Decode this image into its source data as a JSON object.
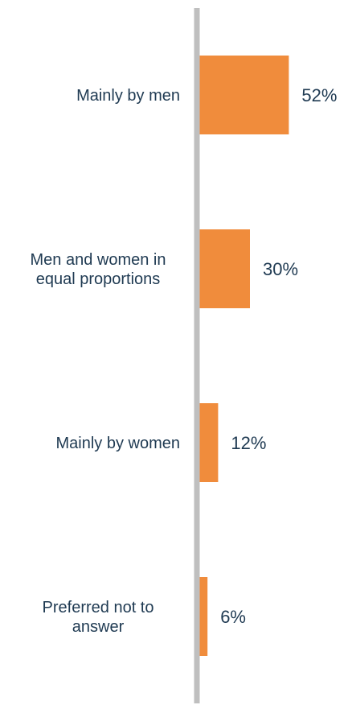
{
  "chart_data": {
    "type": "bar",
    "orientation": "horizontal",
    "categories": [
      "Mainly by men",
      "Men and women in equal proportions",
      "Mainly by women",
      "Preferred not to answer"
    ],
    "category_lines": [
      [
        "Mainly by men"
      ],
      [
        "Men and women in",
        "equal proportions"
      ],
      [
        "Mainly by women"
      ],
      [
        "Preferred not to",
        "answer"
      ]
    ],
    "values": [
      52,
      30,
      12,
      6
    ],
    "data_labels": [
      "52%",
      "30%",
      "12%",
      "6%"
    ],
    "unit": "%",
    "title": "",
    "xlabel": "",
    "ylabel": "",
    "xlim": [
      0,
      100
    ],
    "grid": false,
    "legend": "none",
    "colors": {
      "bar": "#F08C3C",
      "axis": "#BFBFBF",
      "text": "#1F3A52"
    }
  }
}
